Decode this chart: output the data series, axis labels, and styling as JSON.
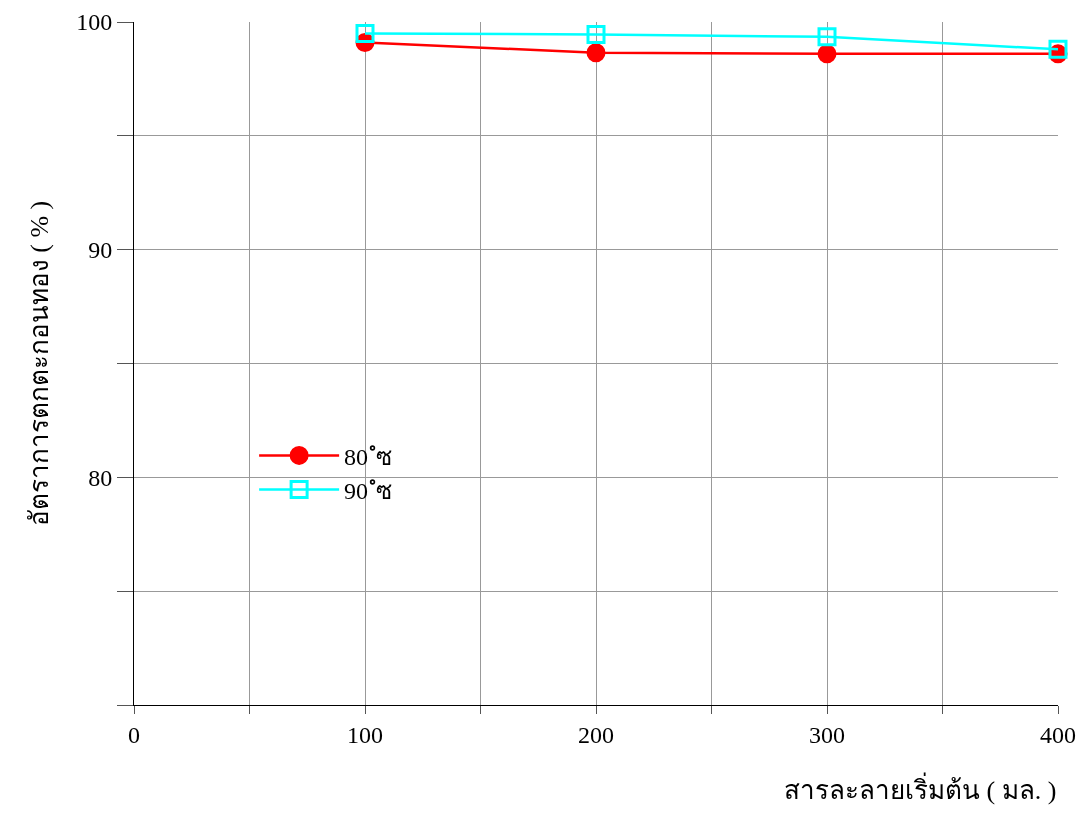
{
  "chart_data": {
    "type": "line",
    "xlabel": "สารละลายเริ่มต้น ( มล. )",
    "ylabel": "อัตราการตกตะกอนทอง ( % )",
    "x": [
      100,
      200,
      300,
      400
    ],
    "series": [
      {
        "name": "80 ํซ",
        "color": "#ff0000",
        "marker": "circle",
        "values": [
          99.1,
          98.65,
          98.6,
          98.6
        ]
      },
      {
        "name": "90 ํซ",
        "color": "#00ffff",
        "marker": "square",
        "values": [
          99.5,
          99.45,
          99.35,
          98.8
        ]
      }
    ],
    "xlim": [
      0,
      400
    ],
    "xticks": [
      0,
      {
        "value": 50,
        "label": null
      },
      100,
      {
        "value": 150,
        "label": null
      },
      200,
      {
        "value": 250,
        "label": null
      },
      300,
      {
        "value": 350,
        "label": null
      },
      400
    ],
    "ylim": [
      70,
      100
    ],
    "yticks": [
      {
        "value": 70,
        "label": null
      },
      {
        "value": 75,
        "label": null
      },
      80,
      {
        "value": 85,
        "label": null
      },
      90,
      {
        "value": 95,
        "label": null
      },
      100
    ],
    "grid": true,
    "legend": "left",
    "line_style": "solid"
  }
}
